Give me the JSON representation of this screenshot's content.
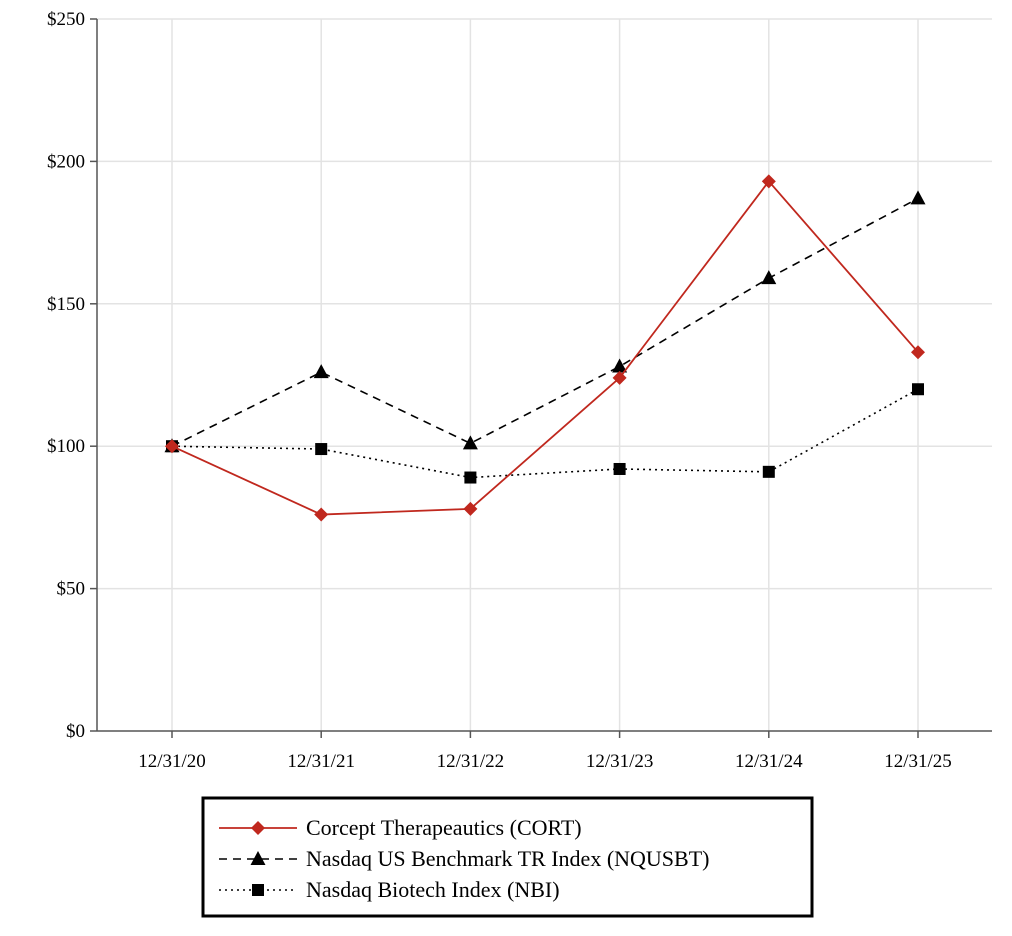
{
  "chart_data": {
    "type": "line",
    "title": "",
    "xlabel": "",
    "ylabel": "",
    "categories": [
      "12/31/20",
      "12/31/21",
      "12/31/22",
      "12/31/23",
      "12/31/24",
      "12/31/25"
    ],
    "ylim": [
      0,
      250
    ],
    "yticks": [
      0,
      50,
      100,
      150,
      200,
      250
    ],
    "ytick_labels": [
      "$0",
      "$50",
      "$100",
      "$150",
      "$200",
      "$250"
    ],
    "grid": true,
    "legend_position": "bottom",
    "series": [
      {
        "name": "Corcept Therapeautics (CORT)",
        "values": [
          100,
          76,
          78,
          124,
          193,
          133
        ],
        "color": "#c0281e",
        "line_style": "solid",
        "marker": "diamond"
      },
      {
        "name": "Nasdaq US Benchmark TR Index (NQUSBT)",
        "values": [
          100,
          126,
          101,
          128,
          159,
          187
        ],
        "color": "#000000",
        "line_style": "dashed",
        "marker": "triangle"
      },
      {
        "name": "Nasdaq Biotech Index (NBI)",
        "values": [
          100,
          99,
          89,
          92,
          91,
          120
        ],
        "color": "#000000",
        "line_style": "dotted",
        "marker": "square"
      }
    ]
  }
}
